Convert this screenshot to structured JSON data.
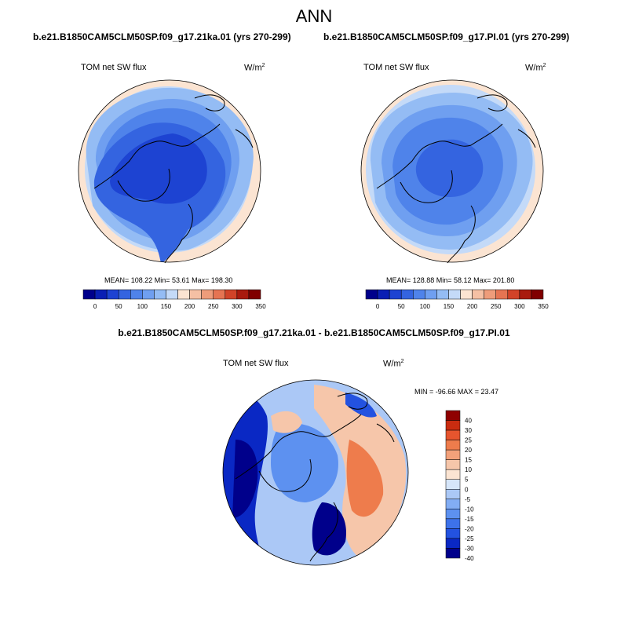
{
  "main_title": "ANN",
  "colors": {
    "abs_scale": [
      "#00008b",
      "#0a1fb4",
      "#1d43d2",
      "#3464e0",
      "#4f83ea",
      "#6f9ff0",
      "#94bcf4",
      "#c4daf8",
      "#fbe4d2",
      "#f5c0a4",
      "#ee9c7a",
      "#e57452",
      "#d14328",
      "#a91a0e",
      "#800000"
    ],
    "diff_scale": [
      "#00008b",
      "#0a28c4",
      "#2352e0",
      "#3d72ea",
      "#5d91f0",
      "#82adf4",
      "#abc8f6",
      "#d6e6fa",
      "#fbe4d2",
      "#f6c6aa",
      "#f3a17a",
      "#ee7c4c",
      "#e6552e",
      "#c92c10",
      "#8f0000"
    ],
    "ocean_light": "#c7ddf7",
    "land_outline": "#000000"
  },
  "panel1": {
    "title": "b.e21.B1850CAM5CLM50SP.f09_g17.21ka.01 (yrs 270-299)",
    "variable": "TOM net SW flux",
    "units": "W/m",
    "units_sup": "2",
    "stats": "MEAN= 108.22  Min=  53.61  Max= 198.30"
  },
  "panel2": {
    "title": "b.e21.B1850CAM5CLM50SP.f09_g17.PI.01 (yrs 270-299)",
    "variable": "TOM net SW flux",
    "units": "W/m",
    "units_sup": "2",
    "stats": "MEAN= 128.88  Min=  58.12  Max= 201.80"
  },
  "panel3": {
    "title": "b.e21.B1850CAM5CLM50SP.f09_g17.21ka.01 - b.e21.B1850CAM5CLM50SP.f09_g17.PI.01",
    "variable": "TOM net SW flux",
    "units": "W/m",
    "units_sup": "2",
    "stats": "MIN = -96.66 MAX =  23.47"
  },
  "abs_colorbar_labels": [
    "0",
    "50",
    "100",
    "150",
    "200",
    "250",
    "300",
    "350"
  ],
  "diff_colorbar_labels": [
    "40",
    "30",
    "25",
    "20",
    "15",
    "10",
    "5",
    "0",
    "-5",
    "-10",
    "-15",
    "-20",
    "-25",
    "-30",
    "-40"
  ]
}
